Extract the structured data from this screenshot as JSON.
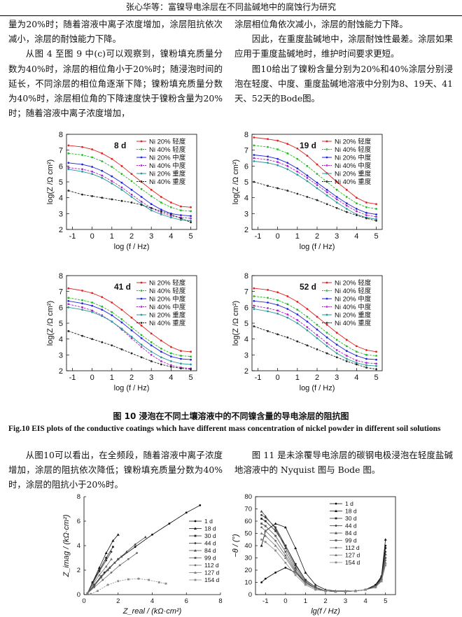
{
  "header": {
    "running_title": "张心华等：富镍导电涂层在不同盐碱地中的腐蚀行为研究"
  },
  "left_top": {
    "p1": "量为20%时；随着溶液中离子浓度增加，涂层阻抗依次减小，涂层的耐蚀能力下降。",
    "p2": "从图 4 至图 9 中(c)可以观察到，镍粉填充质量分数为40%时，涂层的相位角小于20%时；随浸泡时间的延长，不同涂层的相位角逐渐下降；镍粉填充质量分数为40%时，涂层相位角的下降速度快于镍粉含量为20%时；随着溶液中离子浓度增加，"
  },
  "right_top": {
    "p1": "涂层相位角依次减小，涂层的耐蚀能力下降。",
    "p2": "因此，在重度盐碱地中，涂层耐蚀性最差。涂层如果应用于重度盐碱地时，维护时间要求更短。",
    "p3": "图10给出了镍粉含量分别为20%和40%涂层分别浸泡在轻度、中度、重度盐碱地溶液中分别为8、19天、41天、52天的Bode图。"
  },
  "legend": [
    "Ni 20%  轻度",
    "Ni 40%  轻度",
    "Ni 20%  中度",
    "Ni 40%  中度",
    "Ni 20%  重度",
    "Ni 40%  重度"
  ],
  "legend_colors": [
    "#e02020",
    "#22bb22",
    "#2222dd",
    "#aa22cc",
    "#229999",
    "#222222"
  ],
  "chart_data": [
    {
      "type": "line",
      "title": "8 d",
      "xlabel": "log (f / Hz)",
      "ylabel": "log(Z /Ω cm²)",
      "xlim": [
        -1.3,
        5.3
      ],
      "ylim": [
        2,
        8
      ],
      "x": [
        -1.2,
        -0.5,
        0,
        0.5,
        1,
        1.5,
        2,
        2.5,
        3,
        3.5,
        4,
        4.5,
        5
      ],
      "series": [
        {
          "name": "Ni 20%  轻度",
          "values": [
            7.3,
            7.2,
            7.05,
            6.8,
            6.45,
            6.0,
            5.5,
            5.0,
            4.5,
            4.05,
            3.7,
            3.45,
            3.4
          ]
        },
        {
          "name": "Ni 40%  轻度",
          "values": [
            6.8,
            6.7,
            6.55,
            6.3,
            5.95,
            5.5,
            5.05,
            4.55,
            4.1,
            3.7,
            3.4,
            3.2,
            3.15
          ]
        },
        {
          "name": "Ni 20%  中度",
          "values": [
            6.2,
            6.1,
            5.95,
            5.7,
            5.35,
            4.95,
            4.5,
            4.05,
            3.6,
            3.25,
            3.0,
            2.9,
            2.85
          ]
        },
        {
          "name": "Ni 40%  中度",
          "values": [
            5.9,
            5.8,
            5.65,
            5.4,
            5.05,
            4.65,
            4.2,
            3.75,
            3.35,
            3.05,
            2.85,
            2.75,
            2.7
          ]
        },
        {
          "name": "Ni 20%  重度",
          "values": [
            5.8,
            5.65,
            5.5,
            5.25,
            4.9,
            4.5,
            4.05,
            3.6,
            3.2,
            2.95,
            2.75,
            2.6,
            2.55
          ]
        },
        {
          "name": "Ni 40%  重度",
          "values": [
            4.45,
            4.2,
            4.1,
            4.0,
            3.9,
            3.8,
            3.7,
            3.55,
            3.35,
            3.15,
            2.95,
            2.7,
            2.45
          ]
        }
      ]
    },
    {
      "type": "line",
      "title": "19 d",
      "xlabel": "log (f / Hz)",
      "ylabel": "log(Z /Ω cm²)",
      "xlim": [
        -1.3,
        5.3
      ],
      "ylim": [
        2,
        8
      ],
      "x": [
        -1.2,
        -0.5,
        0,
        0.5,
        1,
        1.5,
        2,
        2.5,
        3,
        3.5,
        4,
        4.5,
        5
      ],
      "series": [
        {
          "name": "Ni 20%  轻度",
          "values": [
            7.8,
            7.7,
            7.6,
            7.4,
            7.1,
            6.65,
            6.1,
            5.55,
            5.0,
            4.5,
            4.0,
            3.7,
            3.6
          ]
        },
        {
          "name": "Ni 40%  轻度",
          "values": [
            7.3,
            7.2,
            7.05,
            6.8,
            6.45,
            6.0,
            5.5,
            5.0,
            4.5,
            4.05,
            3.65,
            3.4,
            3.3
          ]
        },
        {
          "name": "Ni 20%  中度",
          "values": [
            6.7,
            6.6,
            6.45,
            6.2,
            5.85,
            5.4,
            4.95,
            4.5,
            4.05,
            3.65,
            3.3,
            3.05,
            2.95
          ]
        },
        {
          "name": "Ni 40%  中度",
          "values": [
            6.5,
            6.4,
            6.25,
            6.0,
            5.65,
            5.25,
            4.8,
            4.35,
            3.9,
            3.5,
            3.15,
            2.9,
            2.8
          ]
        },
        {
          "name": "Ni 20%  重度",
          "values": [
            6.3,
            6.2,
            6.05,
            5.8,
            5.45,
            5.05,
            4.6,
            4.15,
            3.7,
            3.3,
            2.95,
            2.75,
            2.65
          ]
        },
        {
          "name": "Ni 40%  重度",
          "values": [
            5.0,
            4.75,
            4.6,
            4.45,
            4.25,
            4.05,
            3.85,
            3.6,
            3.35,
            3.1,
            2.9,
            2.7,
            2.55
          ]
        }
      ]
    },
    {
      "type": "line",
      "title": "41 d",
      "xlabel": "log (f / Hz)",
      "ylabel": "log(Z /Ω cm²)",
      "xlim": [
        -1.3,
        5.3
      ],
      "ylim": [
        2,
        8
      ],
      "x": [
        -1.2,
        -0.5,
        0,
        0.5,
        1,
        1.5,
        2,
        2.5,
        3,
        3.5,
        4,
        4.5,
        5
      ],
      "series": [
        {
          "name": "Ni 20%  轻度",
          "values": [
            7.2,
            7.05,
            6.9,
            6.65,
            6.3,
            5.85,
            5.35,
            4.85,
            4.35,
            3.9,
            3.5,
            3.25,
            3.2
          ]
        },
        {
          "name": "Ni 40%  轻度",
          "values": [
            6.6,
            6.45,
            6.3,
            6.05,
            5.7,
            5.25,
            4.75,
            4.25,
            3.8,
            3.4,
            3.1,
            2.95,
            2.9
          ]
        },
        {
          "name": "Ni 20%  中度",
          "values": [
            6.4,
            6.25,
            6.1,
            5.85,
            5.5,
            5.05,
            4.55,
            4.05,
            3.6,
            3.2,
            2.9,
            2.75,
            2.7
          ]
        },
        {
          "name": "Ni 40%  中度",
          "values": [
            6.2,
            6.0,
            5.8,
            5.5,
            5.1,
            4.6,
            4.05,
            3.5,
            3.0,
            2.6,
            2.35,
            2.2,
            2.15
          ]
        },
        {
          "name": "Ni 20%  重度",
          "values": [
            6.0,
            5.85,
            5.7,
            5.45,
            5.1,
            4.65,
            4.15,
            3.65,
            3.2,
            2.85,
            2.6,
            2.45,
            2.4
          ]
        },
        {
          "name": "Ni 40%  重度",
          "values": [
            4.5,
            4.2,
            4.0,
            3.8,
            3.6,
            3.35,
            3.1,
            2.85,
            2.6,
            2.4,
            2.25,
            2.15,
            2.1
          ]
        }
      ]
    },
    {
      "type": "line",
      "title": "52 d",
      "xlabel": "log (f / Hz)",
      "ylabel": "log(Z /Ω cm²)",
      "xlim": [
        -1.3,
        5.3
      ],
      "ylim": [
        2,
        8
      ],
      "x": [
        -1.2,
        -0.5,
        0,
        0.5,
        1,
        1.5,
        2,
        2.5,
        3,
        3.5,
        4,
        4.5,
        5
      ],
      "series": [
        {
          "name": "Ni 20%  轻度",
          "values": [
            7.2,
            7.1,
            6.95,
            6.7,
            6.35,
            5.9,
            5.4,
            4.9,
            4.4,
            3.95,
            3.55,
            3.3,
            3.2
          ]
        },
        {
          "name": "Ni 40%  轻度",
          "values": [
            6.7,
            6.6,
            6.45,
            6.2,
            5.85,
            5.4,
            4.9,
            4.4,
            3.95,
            3.55,
            3.2,
            3.0,
            2.95
          ]
        },
        {
          "name": "Ni 20%  中度",
          "values": [
            6.4,
            6.3,
            6.15,
            5.9,
            5.55,
            5.1,
            4.6,
            4.1,
            3.65,
            3.25,
            2.95,
            2.75,
            2.7
          ]
        },
        {
          "name": "Ni 40%  中度",
          "values": [
            6.1,
            5.95,
            5.8,
            5.55,
            5.2,
            4.75,
            4.25,
            3.75,
            3.3,
            2.95,
            2.65,
            2.5,
            2.45
          ]
        },
        {
          "name": "Ni 20%  重度",
          "values": [
            5.9,
            5.75,
            5.6,
            5.35,
            5.0,
            4.55,
            4.05,
            3.55,
            3.1,
            2.75,
            2.5,
            2.35,
            2.3
          ]
        },
        {
          "name": "Ni 40%  重度",
          "values": [
            4.8,
            4.5,
            4.3,
            4.1,
            3.85,
            3.6,
            3.35,
            3.1,
            2.85,
            2.6,
            2.4,
            2.2,
            2.1
          ]
        }
      ]
    }
  ],
  "caption": {
    "cn": "图 10  浸泡在不同土壤溶液中的不同镍含量的导电涂层的阻抗图",
    "en": "Fig.10 EIS plots of the conductive coatings which have different mass concentration of nickel powder in different soil solutions"
  },
  "left_bottom": {
    "p1": "从图10可以看出，在全频段，随着溶液中离子浓度增加，涂层的阻抗依次降低；镍粉填充质量分数为40%时，涂层的阻抗小于20%时。"
  },
  "right_bottom": {
    "p1": "图 11 是未涂覆导电涂层的碳钢电极浸泡在轻度盐碱地溶液中的 Nyquist 图与 Bode 图。"
  },
  "fig11": {
    "legend": [
      "1 d",
      "18 d",
      "30 d",
      "44 d",
      "84 d",
      "99 d",
      "112 d",
      "127 d",
      "154 d"
    ],
    "nyquist": {
      "xlabel": "Z_real / (kΩ·cm²)",
      "ylabel": "Z_imag / (kΩ·cm²)",
      "xlim": [
        0,
        8
      ],
      "ylim": [
        0,
        8
      ],
      "xticks": [
        0,
        2,
        4,
        6,
        8
      ],
      "yticks": [
        0,
        2,
        4,
        6,
        8
      ],
      "series": [
        {
          "name": "1 d",
          "x": [
            0.2,
            0.6,
            1.2,
            2.0,
            3.0,
            4.0,
            5.0,
            6.0,
            6.8
          ],
          "y": [
            0.1,
            0.8,
            1.8,
            2.9,
            3.9,
            4.9,
            5.8,
            6.7,
            7.3
          ]
        },
        {
          "name": "18 d",
          "x": [
            0.2,
            0.5,
            0.9,
            1.3,
            1.7,
            2.0
          ],
          "y": [
            0.1,
            1.0,
            2.2,
            3.4,
            4.4,
            4.9
          ]
        },
        {
          "name": "30 d",
          "x": [
            0.2,
            0.5,
            0.9,
            1.3,
            1.7
          ],
          "y": [
            0.1,
            1.0,
            2.0,
            3.0,
            3.9
          ]
        },
        {
          "name": "44 d",
          "x": [
            0.2,
            0.5,
            0.9,
            1.3,
            1.6
          ],
          "y": [
            0.1,
            0.9,
            1.9,
            2.8,
            3.5
          ]
        },
        {
          "name": "84 d",
          "x": [
            0.2,
            0.6,
            1.0,
            1.5,
            2.0,
            2.5,
            3.0,
            3.6
          ],
          "y": [
            0.1,
            0.8,
            1.5,
            2.2,
            2.9,
            3.5,
            4.1,
            4.7
          ]
        },
        {
          "name": "99 d",
          "x": [
            0.2,
            0.6,
            1.0,
            1.4,
            1.8,
            2.2
          ],
          "y": [
            0.1,
            0.7,
            1.4,
            2.0,
            2.6,
            3.1
          ]
        },
        {
          "name": "112 d",
          "x": [
            0.2,
            0.6,
            1.1,
            1.6,
            2.1,
            2.6,
            3.1
          ],
          "y": [
            0.1,
            0.6,
            1.2,
            1.8,
            2.4,
            2.9,
            3.4
          ]
        },
        {
          "name": "127 d",
          "x": [
            0.2,
            0.5,
            0.9,
            1.3,
            1.6
          ],
          "y": [
            0.1,
            0.8,
            1.6,
            2.3,
            2.9
          ]
        },
        {
          "name": "154 d",
          "x": [
            0.4,
            0.8,
            1.4,
            2.0,
            2.6,
            3.2,
            3.8,
            4.4,
            4.8
          ],
          "y": [
            0.05,
            0.3,
            0.8,
            1.1,
            1.25,
            1.3,
            1.2,
            1.0,
            0.9
          ]
        }
      ]
    },
    "bode": {
      "xlabel": "lg(f / Hz)",
      "ylabel": "−θ / (°)",
      "xlim": [
        -1.5,
        5.5
      ],
      "ylim": [
        0,
        80
      ],
      "xticks": [
        -1,
        0,
        1,
        2,
        3,
        4,
        5
      ],
      "yticks": [
        0,
        10,
        20,
        30,
        40,
        50,
        60,
        70,
        80
      ],
      "x": [
        -1.2,
        -1,
        -0.5,
        0,
        0.5,
        1,
        1.5,
        2,
        2.5,
        3,
        3.5,
        4,
        4.5,
        4.8,
        5
      ],
      "series": [
        {
          "name": "1 d",
          "values": [
            10,
            13,
            18,
            22,
            18,
            10,
            5,
            3,
            2.5,
            2.5,
            3,
            4,
            8,
            15,
            40
          ]
        },
        {
          "name": "18 d",
          "values": [
            40,
            52,
            58,
            55,
            38,
            18,
            8,
            4,
            3,
            3,
            3,
            4,
            7,
            15,
            45
          ]
        },
        {
          "name": "30 d",
          "values": [
            62,
            60,
            52,
            40,
            25,
            12,
            6,
            3,
            2.5,
            2.5,
            3,
            4,
            7,
            14,
            38
          ]
        },
        {
          "name": "44 d",
          "values": [
            65,
            63,
            55,
            40,
            24,
            12,
            6,
            3,
            2.5,
            2.5,
            3,
            4,
            7,
            13,
            35
          ]
        },
        {
          "name": "84 d",
          "values": [
            68,
            64,
            54,
            38,
            22,
            11,
            5,
            3,
            2.5,
            2.5,
            3,
            4,
            7,
            13,
            33
          ]
        },
        {
          "name": "99 d",
          "values": [
            58,
            56,
            48,
            35,
            20,
            10,
            5,
            3,
            2.5,
            2.5,
            3,
            4,
            6,
            12,
            30
          ]
        },
        {
          "name": "112 d",
          "values": [
            55,
            52,
            44,
            32,
            19,
            10,
            5,
            3,
            2.5,
            2.5,
            3,
            4,
            6,
            12,
            28
          ]
        },
        {
          "name": "127 d",
          "values": [
            50,
            48,
            40,
            30,
            18,
            9,
            5,
            3,
            2.5,
            2.5,
            3,
            4,
            6,
            11,
            26
          ]
        },
        {
          "name": "154 d",
          "values": [
            45,
            43,
            36,
            26,
            16,
            8,
            4,
            3,
            2.5,
            2.5,
            3,
            4,
            6,
            11,
            24
          ]
        }
      ]
    }
  }
}
